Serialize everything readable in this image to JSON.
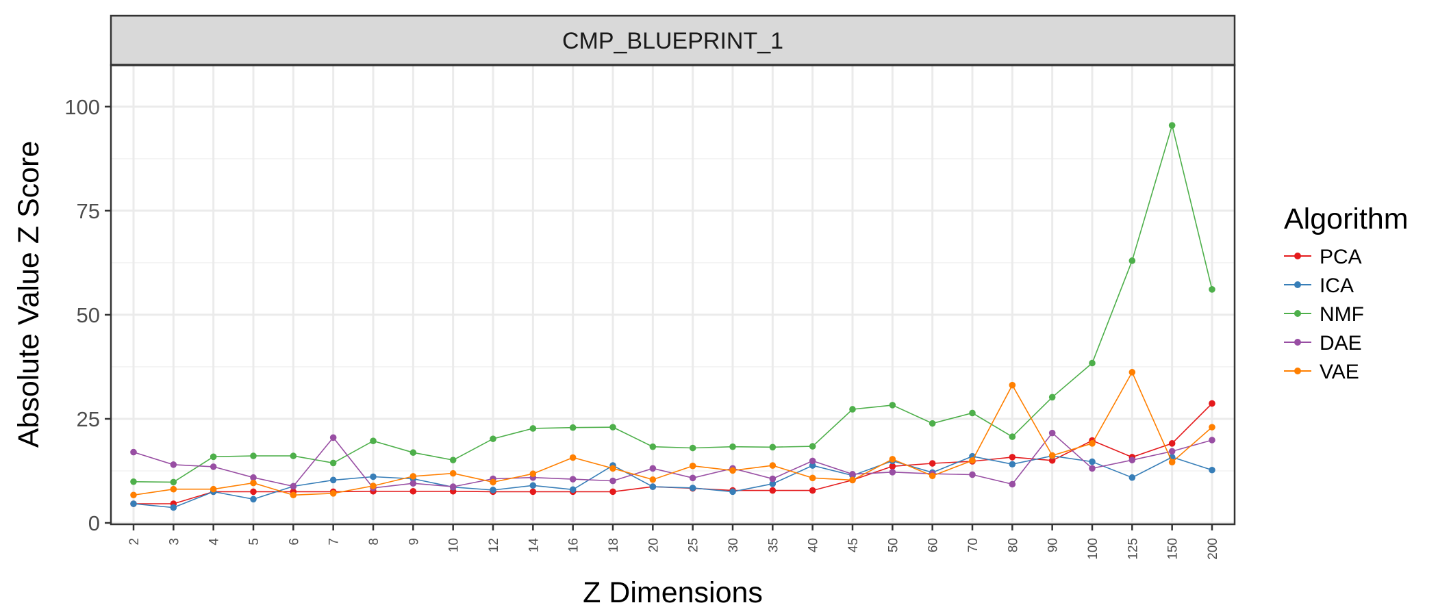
{
  "chart_data": {
    "type": "line",
    "facet_title": "CMP_BLUEPRINT_1",
    "xlabel": "Z Dimensions",
    "ylabel": "Absolute Value Z Score",
    "ylim": [
      0,
      110
    ],
    "yticks": [
      0,
      25,
      50,
      75,
      100
    ],
    "grid": true,
    "legend": {
      "title": "Algorithm",
      "placement": "right"
    },
    "categories": [
      "2",
      "3",
      "4",
      "5",
      "6",
      "7",
      "8",
      "9",
      "10",
      "12",
      "14",
      "16",
      "18",
      "20",
      "25",
      "30",
      "35",
      "40",
      "45",
      "50",
      "60",
      "70",
      "80",
      "90",
      "100",
      "125",
      "150",
      "200"
    ],
    "series": [
      {
        "name": "PCA",
        "color": "#e41a1c",
        "values": [
          4.6,
          4.6,
          7.5,
          7.5,
          7.5,
          7.5,
          7.6,
          7.6,
          7.6,
          7.5,
          7.5,
          7.5,
          7.5,
          8.7,
          8.3,
          7.8,
          7.8,
          7.8,
          10.3,
          13.6,
          14.3,
          14.8,
          15.8,
          15.0,
          19.8,
          15.8,
          19.1,
          28.7
        ]
      },
      {
        "name": "ICA",
        "color": "#377eb8",
        "values": [
          4.6,
          3.7,
          7.5,
          5.7,
          8.8,
          10.3,
          11.1,
          10.6,
          8.6,
          7.9,
          9.0,
          8.0,
          13.8,
          8.7,
          8.4,
          7.5,
          9.4,
          13.8,
          11.4,
          14.9,
          12.1,
          16.0,
          14.1,
          16.1,
          14.7,
          10.9,
          15.8,
          12.7
        ]
      },
      {
        "name": "NMF",
        "color": "#4daf4a",
        "values": [
          9.9,
          9.8,
          15.9,
          16.1,
          16.1,
          14.4,
          19.7,
          16.9,
          15.1,
          20.2,
          22.7,
          22.9,
          23.0,
          18.3,
          18.0,
          18.3,
          18.2,
          18.4,
          27.3,
          28.3,
          23.9,
          26.4,
          20.7,
          30.2,
          38.4,
          63.0,
          95.5,
          56.1
        ]
      },
      {
        "name": "DAE",
        "color": "#984ea3",
        "values": [
          17.0,
          14.0,
          13.5,
          10.9,
          8.8,
          20.5,
          8.4,
          9.5,
          8.7,
          10.6,
          10.9,
          10.5,
          10.1,
          13.1,
          10.8,
          13.1,
          10.6,
          14.9,
          11.7,
          12.2,
          11.8,
          11.6,
          9.3,
          21.6,
          13.1,
          15.1,
          17.2,
          19.9
        ]
      },
      {
        "name": "VAE",
        "color": "#ff7f00",
        "values": [
          6.7,
          8.1,
          8.1,
          9.6,
          6.7,
          7.1,
          8.9,
          11.2,
          11.9,
          9.8,
          11.8,
          15.7,
          13.1,
          10.4,
          13.7,
          12.6,
          13.8,
          10.8,
          10.3,
          15.3,
          11.3,
          15.0,
          33.1,
          16.2,
          19.1,
          36.2,
          14.6,
          23.0
        ]
      }
    ]
  }
}
